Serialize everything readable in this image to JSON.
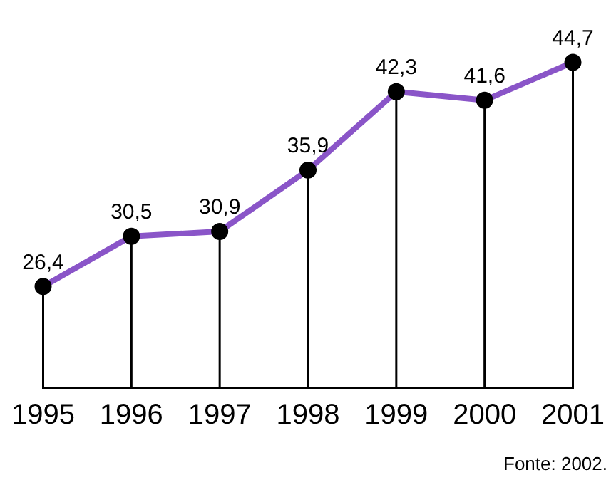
{
  "chart_data": {
    "type": "line",
    "categories": [
      "1995",
      "1996",
      "1997",
      "1998",
      "1999",
      "2000",
      "2001"
    ],
    "series": [
      {
        "color": "#8a55c8",
        "values": [
          26.4,
          30.5,
          30.9,
          35.9,
          42.3,
          41.6,
          44.7
        ],
        "value_labels": [
          "26,4",
          "30,5",
          "30,9",
          "35,9",
          "42,3",
          "41,6",
          "44,7"
        ]
      }
    ],
    "tick_labels": "x",
    "marker": "circle",
    "line_style": "solid",
    "grid": "x",
    "annotations": [
      "Fonte: 2002."
    ]
  }
}
